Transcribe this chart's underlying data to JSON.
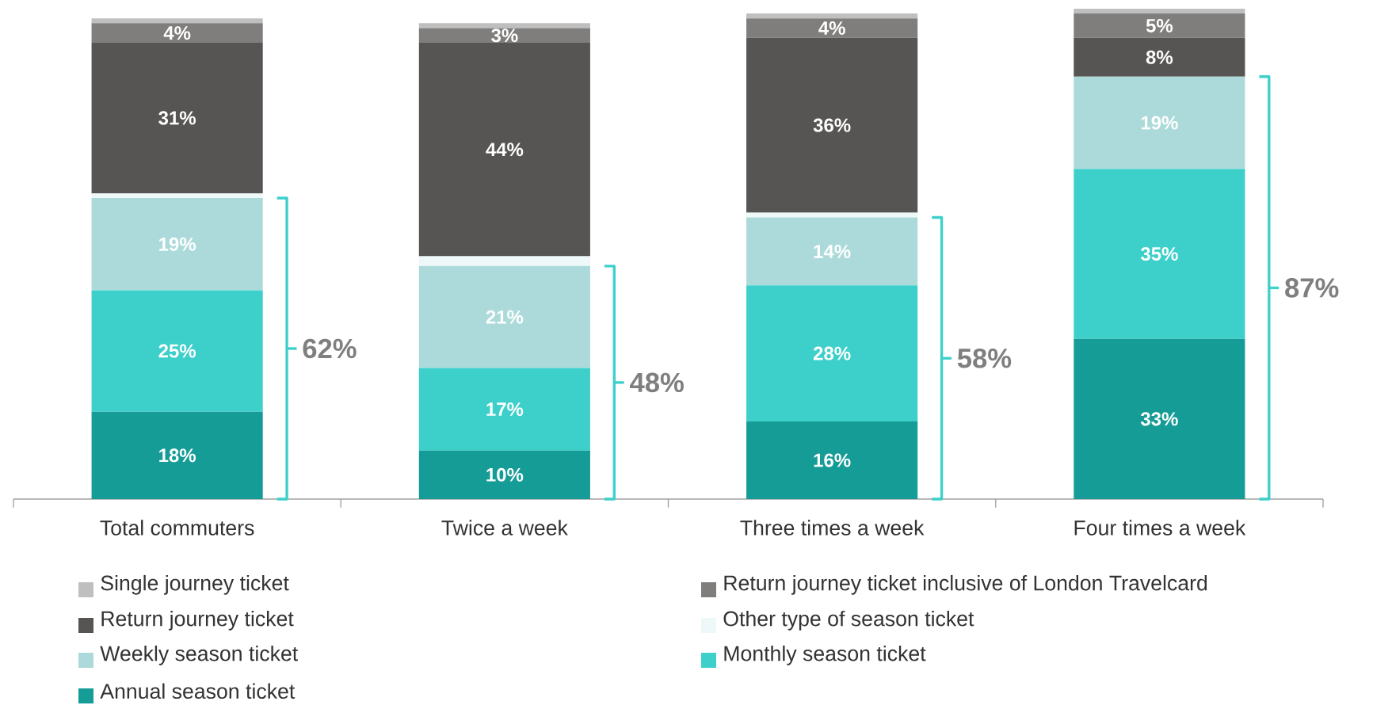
{
  "chart_data": {
    "type": "bar",
    "stacked": true,
    "legend": "bottom",
    "categories": [
      "Total commuters",
      "Twice a week",
      "Three times a week",
      "Four times a week"
    ],
    "series": [
      {
        "name": "Annual season ticket",
        "color": "#169c97",
        "values": [
          18,
          10,
          16,
          33
        ],
        "value_labels": [
          "18%",
          "10%",
          "16%",
          "33%"
        ]
      },
      {
        "name": "Monthly season ticket",
        "color": "#3dd0cb",
        "values": [
          25,
          17,
          28,
          35
        ],
        "value_labels": [
          "25%",
          "17%",
          "28%",
          "35%"
        ]
      },
      {
        "name": "Weekly season ticket",
        "color": "#acdada",
        "values": [
          19,
          21,
          14,
          19
        ],
        "value_labels": [
          "19%",
          "21%",
          "14%",
          "19%"
        ]
      },
      {
        "name": "Other type of season ticket",
        "color": "#eef8f8",
        "values": [
          1,
          2,
          1,
          0
        ],
        "value_labels": [
          null,
          null,
          null,
          null
        ]
      },
      {
        "name": "Return journey ticket",
        "color": "#575553",
        "values": [
          31,
          44,
          36,
          8
        ],
        "value_labels": [
          "31%",
          "44%",
          "36%",
          "8%"
        ]
      },
      {
        "name": "Return journey ticket inclusive of London Travelcard",
        "color": "#807e7c",
        "values": [
          4,
          3,
          4,
          5
        ],
        "value_labels": [
          "4%",
          "3%",
          "4%",
          "5%"
        ]
      },
      {
        "name": "Single journey ticket",
        "color": "#bfbfbf",
        "values": [
          1,
          1,
          1,
          1
        ],
        "value_labels": [
          null,
          null,
          null,
          null
        ]
      }
    ],
    "annotations": [
      "62%",
      "48%",
      "58%",
      "87%"
    ]
  }
}
